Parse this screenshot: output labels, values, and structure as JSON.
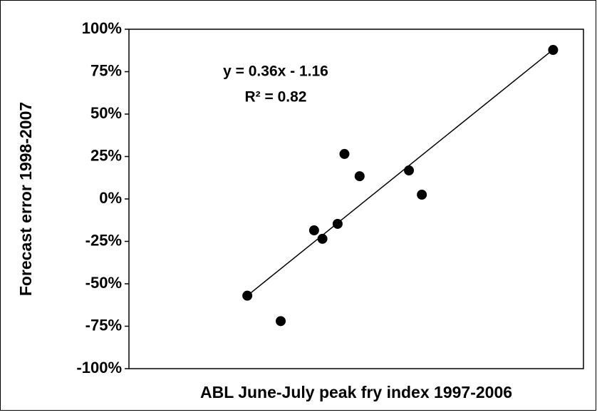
{
  "chart_data": {
    "type": "scatter",
    "x_label": "ABL June-July peak fry index 1997-2006",
    "y_label": "Forecast error 1998-2007",
    "annotations": [
      "y = 0.36x - 1.16",
      "R² = 0.82"
    ],
    "xlim": [
      0.08,
      6.07
    ],
    "ylim": [
      -100,
      100
    ],
    "yticks": [
      {
        "value": -100,
        "label": "-100%"
      },
      {
        "value": -75,
        "label": "-75%"
      },
      {
        "value": -50,
        "label": "-50%"
      },
      {
        "value": -25,
        "label": "-25%"
      },
      {
        "value": 0,
        "label": "0%"
      },
      {
        "value": 25,
        "label": "25%"
      },
      {
        "value": 50,
        "label": "50%"
      },
      {
        "value": 75,
        "label": "75%"
      },
      {
        "value": 100,
        "label": "100%"
      }
    ],
    "color": "#000000",
    "x": [
      1.64,
      2.08,
      2.52,
      2.63,
      2.83,
      2.92,
      3.12,
      3.77,
      3.94,
      5.67
    ],
    "values": [
      -57,
      -72,
      -18.5,
      -23.5,
      -14.7,
      26.5,
      13.4,
      16.8,
      2.5,
      87.8
    ],
    "trendline": {
      "x": [
        1.64,
        5.67
      ],
      "values": [
        -57,
        88
      ]
    }
  }
}
